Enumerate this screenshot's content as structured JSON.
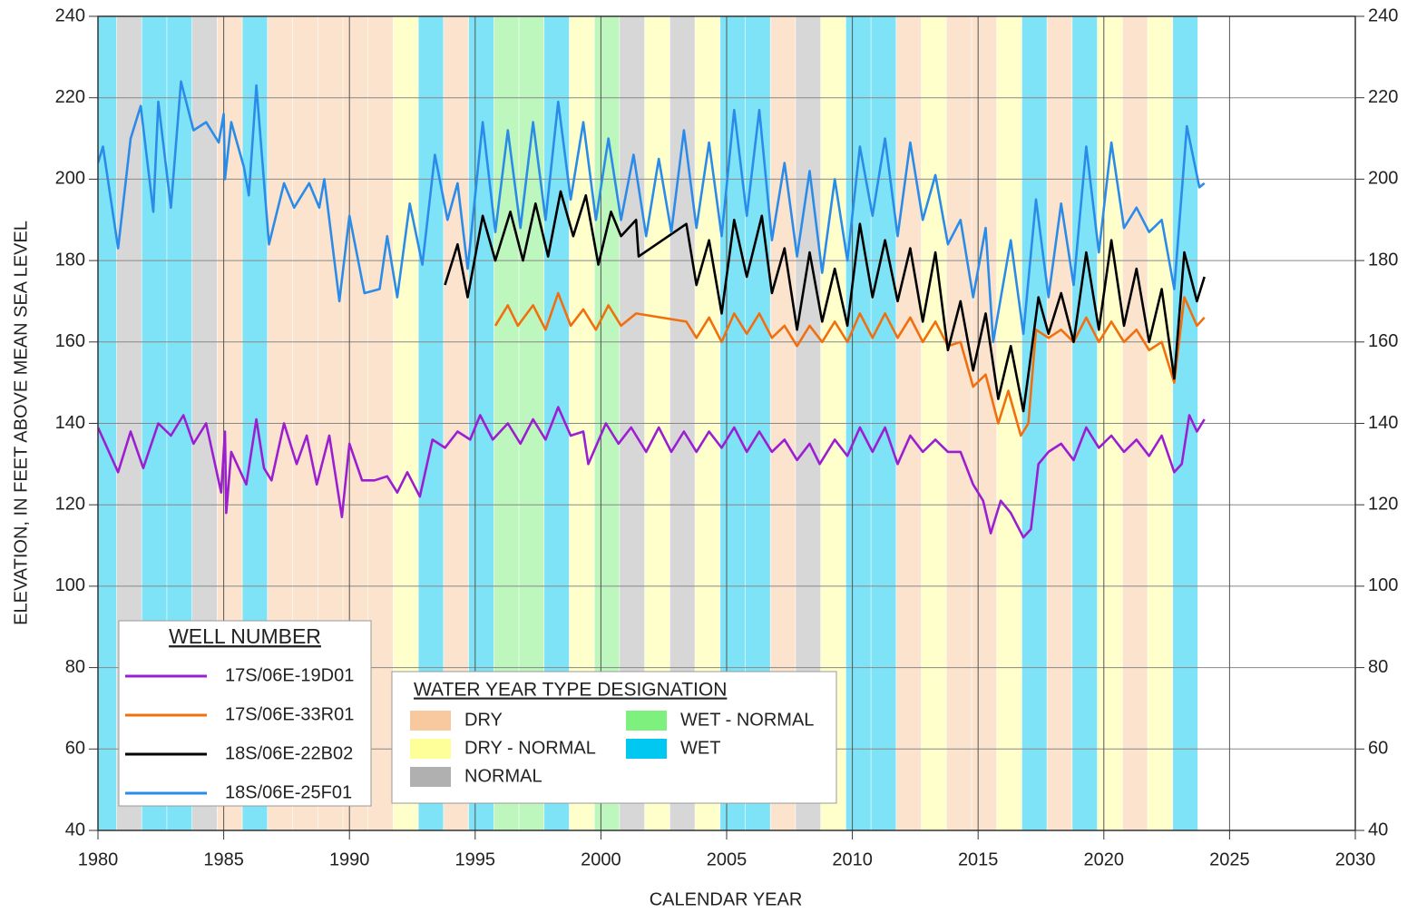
{
  "chart_data": {
    "type": "line",
    "y_axis_label": "ELEVATION, IN FEET ABOVE MEAN SEA LEVEL",
    "x_axis_label": "CALENDAR YEAR",
    "xlim": [
      1980,
      2030
    ],
    "xticks": [
      1980,
      1985,
      1990,
      1995,
      2000,
      2005,
      2010,
      2015,
      2020,
      2025,
      2030
    ],
    "ylim": [
      40,
      240
    ],
    "yticks": [
      40,
      60,
      80,
      100,
      120,
      140,
      160,
      180,
      200,
      220,
      240
    ],
    "grid": true,
    "legend_title": "WELL NUMBER",
    "water_year_legend_title": "WATER YEAR TYPE DESIGNATION",
    "water_year_legend": [
      {
        "name": "DRY",
        "color": "#f8c89e"
      },
      {
        "name": "DRY - NORMAL",
        "color": "#ffff99"
      },
      {
        "name": "NORMAL",
        "color": "#b0b0b0"
      },
      {
        "name": "WET - NORMAL",
        "color": "#7ef07e"
      },
      {
        "name": "WET",
        "color": "#00c8f0"
      }
    ],
    "water_years": [
      1980,
      1981,
      1982,
      1983,
      1984,
      1985,
      1986,
      1987,
      1988,
      1989,
      1990,
      1991,
      1992,
      1993,
      1994,
      1995,
      1996,
      1997,
      1998,
      1999,
      2000,
      2001,
      2002,
      2003,
      2004,
      2005,
      2006,
      2007,
      2008,
      2009,
      2010,
      2011,
      2012,
      2013,
      2014,
      2015,
      2016,
      2017,
      2018,
      2019,
      2020,
      2021,
      2022,
      2023
    ],
    "water_year_types": [
      "WET",
      "NORMAL",
      "WET",
      "WET",
      "NORMAL",
      "DRY",
      "WET",
      "DRY",
      "DRY",
      "DRY",
      "DRY",
      "DRY",
      "DRY - NORMAL",
      "WET",
      "DRY",
      "WET",
      "WET - NORMAL",
      "WET - NORMAL",
      "WET",
      "DRY - NORMAL",
      "WET - NORMAL",
      "NORMAL",
      "DRY - NORMAL",
      "NORMAL",
      "DRY - NORMAL",
      "WET",
      "WET",
      "DRY",
      "NORMAL",
      "DRY - NORMAL",
      "WET",
      "WET",
      "DRY",
      "DRY - NORMAL",
      "DRY",
      "DRY",
      "DRY - NORMAL",
      "WET",
      "DRY",
      "WET",
      "DRY - NORMAL",
      "DRY",
      "DRY - NORMAL",
      "WET"
    ],
    "series": [
      {
        "name": "17S/06E-19D01",
        "color": "#9b1fd1",
        "x": [
          1980.0,
          1980.8,
          1981.3,
          1981.8,
          1982.4,
          1982.9,
          1983.4,
          1983.8,
          1984.3,
          1984.9,
          1985.05,
          1985.1,
          1985.3,
          1985.9,
          1986.3,
          1986.6,
          1986.9,
          1987.4,
          1987.9,
          1988.3,
          1988.7,
          1989.2,
          1989.7,
          1990.0,
          1990.5,
          1991.0,
          1991.5,
          1991.9,
          1992.3,
          1992.8,
          1993.3,
          1993.8,
          1994.3,
          1994.8,
          1995.2,
          1995.7,
          1996.3,
          1996.8,
          1997.3,
          1997.8,
          1998.3,
          1998.8,
          1999.3,
          1999.5,
          2000.2,
          2000.7,
          2001.2,
          2001.8,
          2002.3,
          2002.8,
          2003.3,
          2003.8,
          2004.3,
          2004.8,
          2005.3,
          2005.8,
          2006.3,
          2006.8,
          2007.3,
          2007.8,
          2008.3,
          2008.7,
          2009.3,
          2009.8,
          2010.3,
          2010.8,
          2011.3,
          2011.8,
          2012.3,
          2012.8,
          2013.3,
          2013.8,
          2014.3,
          2014.8,
          2015.2,
          2015.5,
          2015.9,
          2016.3,
          2016.8,
          2017.1,
          2017.4,
          2017.8,
          2018.3,
          2018.8,
          2019.3,
          2019.8,
          2020.3,
          2020.8,
          2021.3,
          2021.8,
          2022.3,
          2022.8,
          2023.1,
          2023.4,
          2023.7,
          2024.0
        ],
        "values": [
          139,
          128,
          138,
          129,
          140,
          137,
          142,
          135,
          140,
          123,
          138,
          118,
          133,
          125,
          141,
          129,
          126,
          140,
          130,
          137,
          125,
          137,
          117,
          135,
          126,
          126,
          127,
          123,
          128,
          122,
          136,
          134,
          138,
          136,
          142,
          136,
          140,
          135,
          141,
          136,
          144,
          137,
          138,
          130,
          140,
          135,
          139,
          133,
          139,
          133,
          138,
          133,
          138,
          134,
          139,
          133,
          138,
          133,
          136,
          131,
          135,
          130,
          136,
          132,
          139,
          133,
          139,
          130,
          137,
          133,
          136,
          133,
          133,
          125,
          121,
          113,
          121,
          118,
          112,
          114,
          130,
          133,
          135,
          131,
          139,
          134,
          137,
          133,
          136,
          132,
          137,
          128,
          130,
          142,
          138,
          141
        ]
      },
      {
        "name": "17S/06E-33R01",
        "color": "#f07010",
        "x": [
          1995.8,
          1996.3,
          1996.7,
          1997.3,
          1997.8,
          1998.3,
          1998.8,
          1999.3,
          1999.8,
          2000.3,
          2000.8,
          2001.4,
          2003.4,
          2003.8,
          2004.3,
          2004.8,
          2005.3,
          2005.8,
          2006.3,
          2006.8,
          2007.3,
          2007.8,
          2008.3,
          2008.8,
          2009.3,
          2009.8,
          2010.3,
          2010.8,
          2011.3,
          2011.8,
          2012.3,
          2012.8,
          2013.3,
          2013.8,
          2014.3,
          2014.8,
          2015.3,
          2015.8,
          2016.2,
          2016.7,
          2017.0,
          2017.3,
          2017.8,
          2018.3,
          2018.8,
          2019.3,
          2019.8,
          2020.3,
          2020.8,
          2021.3,
          2021.8,
          2022.3,
          2022.8,
          2023.2,
          2023.7,
          2024.0
        ],
        "values": [
          164,
          169,
          164,
          169,
          163,
          172,
          164,
          168,
          163,
          169,
          164,
          167,
          165,
          161,
          166,
          160,
          167,
          162,
          167,
          161,
          164,
          159,
          164,
          160,
          165,
          160,
          167,
          161,
          167,
          161,
          166,
          160,
          165,
          159,
          160,
          149,
          152,
          140,
          148,
          137,
          140,
          163,
          161,
          163,
          160,
          166,
          160,
          165,
          160,
          163,
          158,
          160,
          150,
          171,
          164,
          166
        ]
      },
      {
        "name": "18S/06E-22B02",
        "color": "#000000",
        "x": [
          1993.8,
          1994.3,
          1994.7,
          1995.3,
          1995.8,
          1996.4,
          1996.9,
          1997.4,
          1997.9,
          1998.4,
          1998.9,
          1999.4,
          1999.9,
          2000.4,
          2000.8,
          2001.4,
          2001.5,
          2003.4,
          2003.8,
          2004.3,
          2004.8,
          2005.3,
          2005.8,
          2006.4,
          2006.8,
          2007.3,
          2007.8,
          2008.3,
          2008.8,
          2009.3,
          2009.8,
          2010.3,
          2010.8,
          2011.3,
          2011.8,
          2012.3,
          2012.8,
          2013.3,
          2013.8,
          2014.3,
          2014.8,
          2015.3,
          2015.8,
          2016.3,
          2016.8,
          2017.0,
          2017.4,
          2017.8,
          2018.3,
          2018.8,
          2019.3,
          2019.8,
          2020.3,
          2020.8,
          2021.3,
          2021.8,
          2022.3,
          2022.8,
          2023.2,
          2023.7,
          2024.0
        ],
        "values": [
          174,
          184,
          171,
          191,
          180,
          192,
          180,
          194,
          181,
          197,
          186,
          196,
          179,
          192,
          186,
          190,
          181,
          189,
          174,
          185,
          167,
          190,
          176,
          191,
          172,
          183,
          163,
          182,
          165,
          178,
          164,
          189,
          171,
          185,
          170,
          183,
          165,
          182,
          158,
          170,
          153,
          167,
          146,
          159,
          143,
          152,
          171,
          162,
          172,
          160,
          182,
          163,
          185,
          164,
          178,
          160,
          173,
          151,
          182,
          170,
          176
        ]
      },
      {
        "name": "18S/06E-25F01",
        "color": "#2a8ce8",
        "x": [
          1980.0,
          1980.2,
          1980.8,
          1981.3,
          1981.7,
          1982.2,
          1982.4,
          1982.9,
          1983.3,
          1983.8,
          1984.3,
          1984.8,
          1985.0,
          1985.05,
          1985.3,
          1985.8,
          1986.0,
          1986.3,
          1986.8,
          1987.4,
          1987.8,
          1988.4,
          1988.8,
          1989.0,
          1989.6,
          1990.0,
          1990.6,
          1991.2,
          1991.5,
          1991.9,
          1992.4,
          1992.9,
          1993.4,
          1993.9,
          1994.3,
          1994.7,
          1995.3,
          1995.8,
          1996.3,
          1996.8,
          1997.3,
          1997.8,
          1998.3,
          1998.8,
          1999.3,
          1999.8,
          2000.3,
          2000.8,
          2001.3,
          2001.8,
          2002.3,
          2002.8,
          2003.3,
          2003.8,
          2004.3,
          2004.8,
          2005.3,
          2005.8,
          2006.3,
          2006.8,
          2007.3,
          2007.8,
          2008.3,
          2008.8,
          2009.3,
          2009.8,
          2010.3,
          2010.8,
          2011.3,
          2011.8,
          2012.3,
          2012.8,
          2013.3,
          2013.8,
          2014.3,
          2014.8,
          2015.3,
          2015.6,
          2016.3,
          2016.8,
          2017.3,
          2017.8,
          2018.3,
          2018.8,
          2019.3,
          2019.8,
          2020.3,
          2020.8,
          2021.3,
          2021.8,
          2022.3,
          2022.8,
          2023.3,
          2023.8,
          2024.0
        ],
        "values": [
          204,
          208,
          183,
          210,
          218,
          192,
          219,
          193,
          224,
          212,
          214,
          209,
          216,
          200,
          214,
          203,
          196,
          223,
          184,
          199,
          193,
          199,
          193,
          200,
          170,
          191,
          172,
          173,
          186,
          171,
          194,
          179,
          206,
          190,
          199,
          178,
          214,
          187,
          212,
          188,
          214,
          190,
          219,
          195,
          214,
          190,
          210,
          190,
          206,
          186,
          205,
          187,
          212,
          188,
          209,
          186,
          217,
          191,
          217,
          185,
          204,
          181,
          202,
          177,
          200,
          180,
          208,
          191,
          210,
          186,
          209,
          190,
          201,
          184,
          190,
          171,
          188,
          160,
          185,
          162,
          195,
          171,
          194,
          174,
          208,
          182,
          209,
          188,
          193,
          187,
          190,
          173,
          213,
          198,
          199
        ]
      }
    ]
  }
}
